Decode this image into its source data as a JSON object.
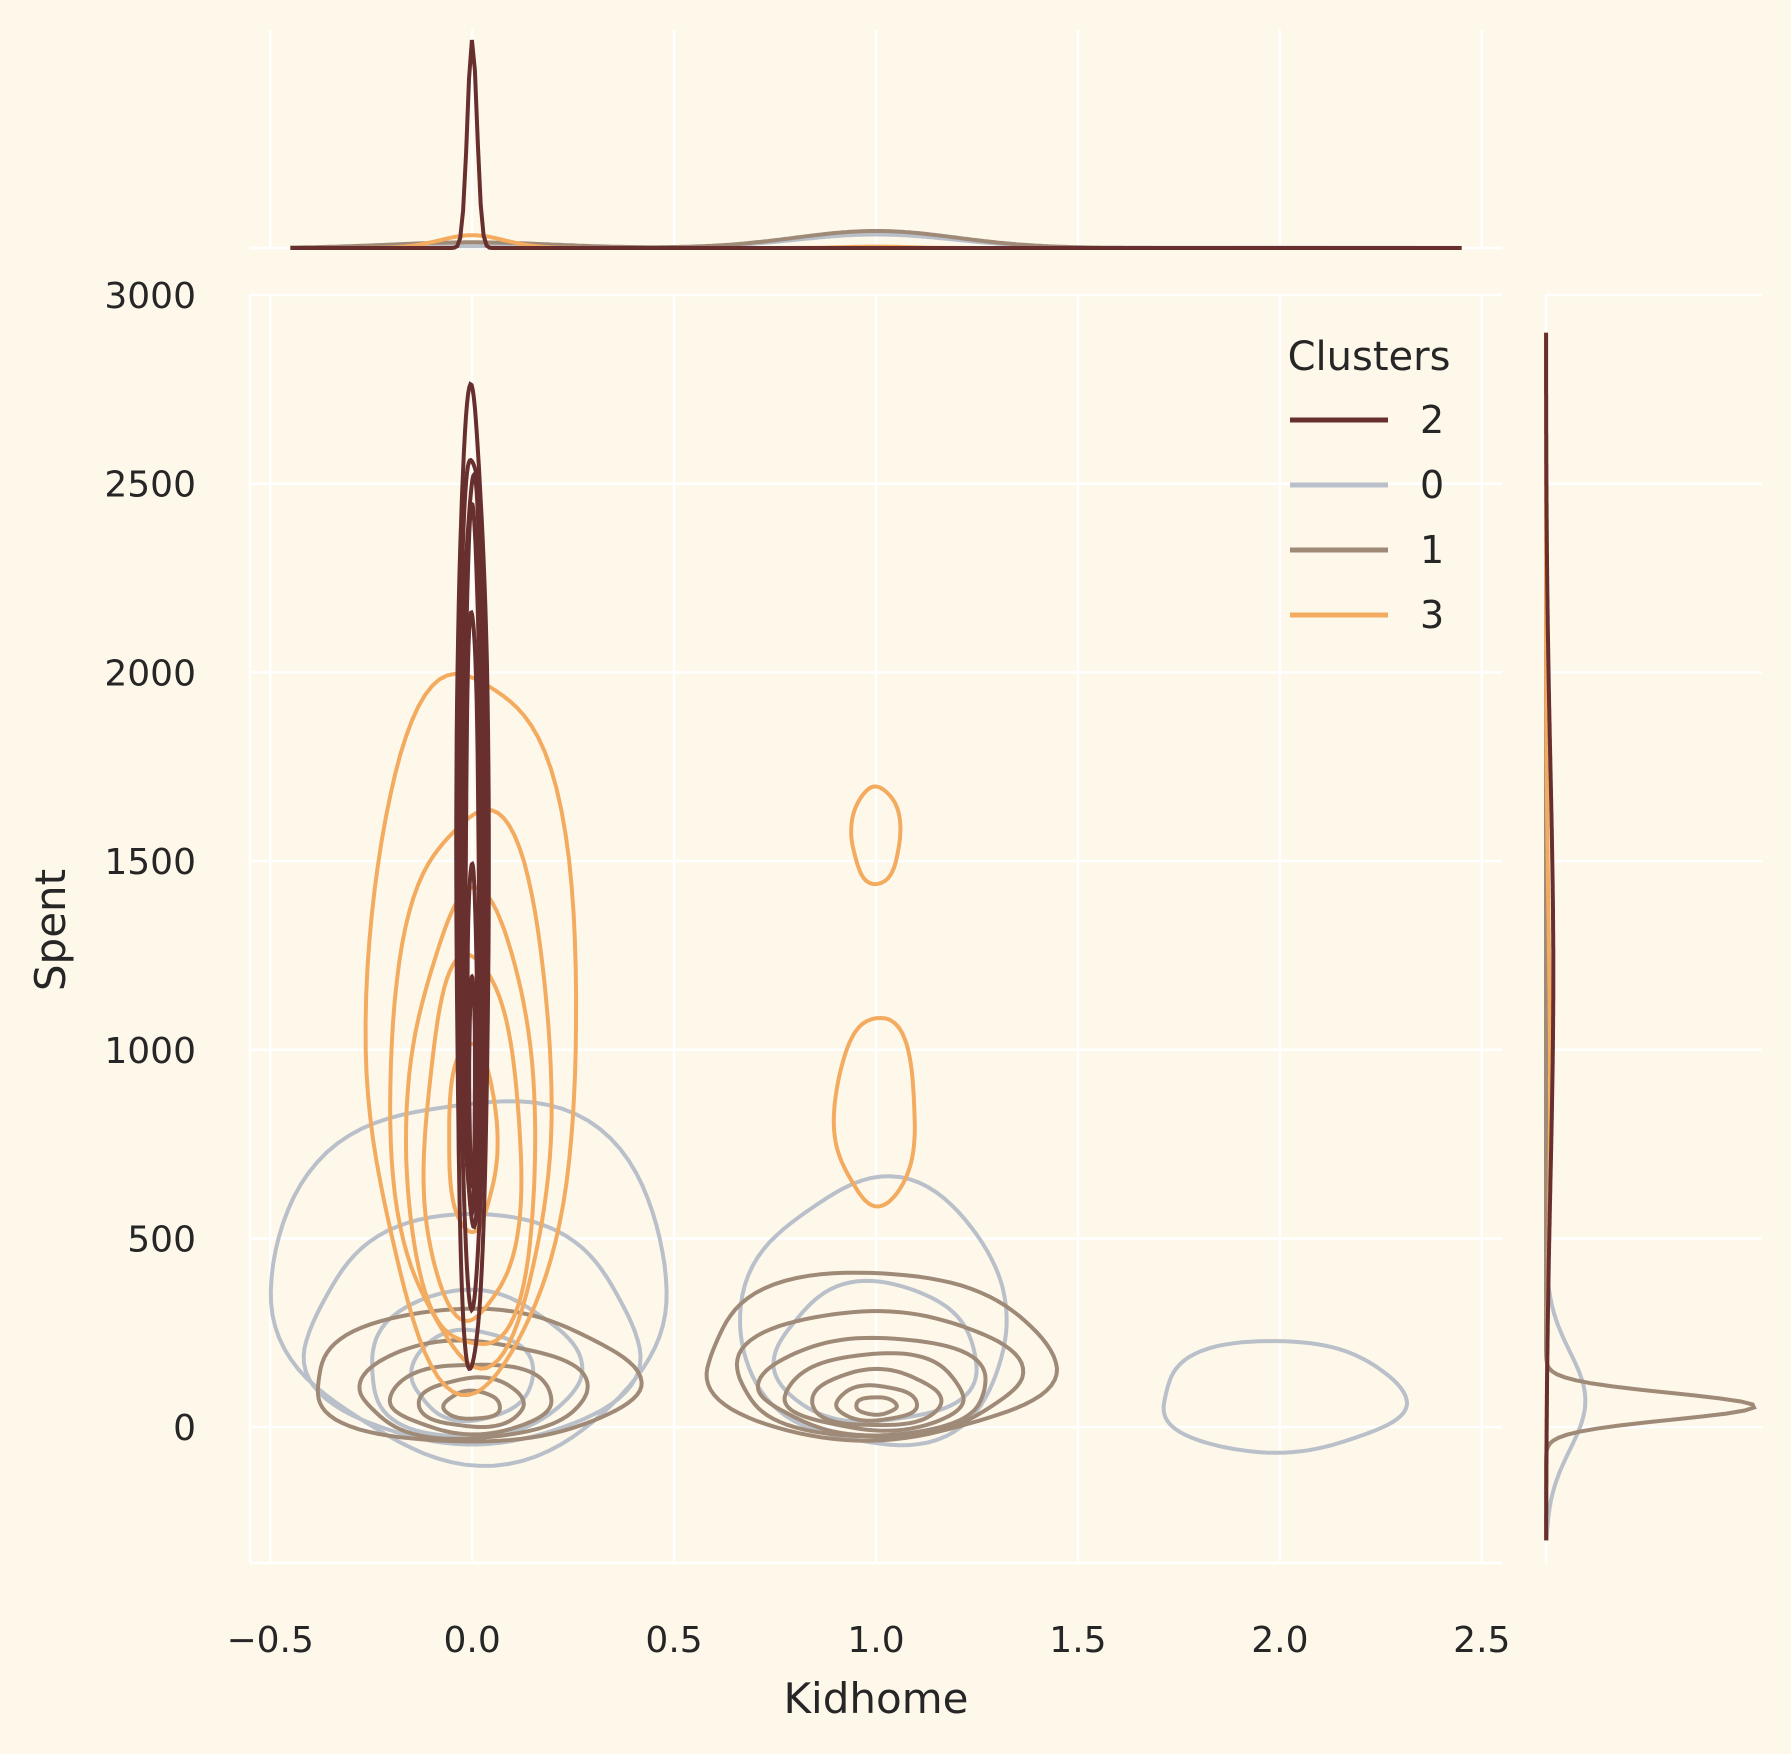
{
  "chart_data": {
    "type": "kde-contour",
    "xlabel": "Kidhome",
    "ylabel": "Spent",
    "xlim": [
      -0.55,
      2.55
    ],
    "ylim": [
      -360,
      3000
    ],
    "xticks": [
      -0.5,
      0.0,
      0.5,
      1.0,
      1.5,
      2.0,
      2.5
    ],
    "xtick_labels": [
      "−0.5",
      "0.0",
      "0.5",
      "1.0",
      "1.5",
      "2.0",
      "2.5"
    ],
    "yticks": [
      0,
      500,
      1000,
      1500,
      2000,
      2500,
      3000
    ],
    "ytick_labels": [
      "0",
      "500",
      "1000",
      "1500",
      "2000",
      "2500",
      "3000"
    ],
    "grid": true,
    "background": "#FEF8EB",
    "legend": {
      "title": "Clusters",
      "placement": "top-right",
      "entries": [
        {
          "label": "2",
          "color": "#682F2F"
        },
        {
          "label": "0",
          "color": "#B9C0C9"
        },
        {
          "label": "1",
          "color": "#9F8A78"
        },
        {
          "label": "3",
          "color": "#F3AB60"
        }
      ]
    },
    "series": [
      {
        "cluster": "2",
        "color": "#682F2F",
        "contours": [
          {
            "cx": 0.0,
            "cy": 1350,
            "rx": 0.04,
            "ry": 1400
          },
          {
            "cx": 0.0,
            "cy": 1400,
            "rx": 0.034,
            "ry": 1220
          },
          {
            "cx": 0.0,
            "cy": 1450,
            "rx": 0.028,
            "ry": 1060
          },
          {
            "cx": 0.0,
            "cy": 1450,
            "rx": 0.022,
            "ry": 950
          },
          {
            "cx": 0.0,
            "cy": 1300,
            "rx": 0.017,
            "ry": 850
          },
          {
            "cx": 0.0,
            "cy": 1000,
            "rx": 0.012,
            "ry": 500
          },
          {
            "cx": 0.0,
            "cy": 900,
            "rx": 0.007,
            "ry": 300
          }
        ],
        "x_marginal": [
          {
            "mean": 0.0,
            "sd": 0.012,
            "weight": 1.0
          }
        ],
        "y_marginal": [
          {
            "mean": 1200,
            "sd": 550,
            "weight": 1.0
          }
        ]
      },
      {
        "cluster": "0",
        "color": "#B9C0C9",
        "contours": [
          {
            "cx": 0.0,
            "cy": 230,
            "rx": 0.41,
            "ry": 330
          },
          {
            "cx": 0.0,
            "cy": 150,
            "rx": 0.26,
            "ry": 210
          },
          {
            "cx": 0.0,
            "cy": 130,
            "rx": 0.15,
            "ry": 130
          },
          {
            "cx": 0.0,
            "cy": 360,
            "rx": 0.49,
            "ry": 520
          },
          {
            "cx": 1.0,
            "cy": 270,
            "rx": 0.33,
            "ry": 380
          },
          {
            "cx": 1.0,
            "cy": 180,
            "rx": 0.25,
            "ry": 200
          },
          {
            "cx": 2.0,
            "cy": 70,
            "rx": 0.3,
            "ry": 160
          }
        ],
        "x_marginal": [
          {
            "mean": 1.0,
            "sd": 0.2,
            "weight": 0.85
          },
          {
            "mean": 0.0,
            "sd": 0.2,
            "weight": 0.12
          },
          {
            "mean": 2.0,
            "sd": 0.25,
            "weight": 0.03
          }
        ],
        "y_marginal": [
          {
            "mean": 70,
            "sd": 130,
            "weight": 1.0
          }
        ]
      },
      {
        "cluster": "1",
        "color": "#9F8A78",
        "contours": [
          {
            "cx": 0.0,
            "cy": 120,
            "rx": 0.4,
            "ry": 190
          },
          {
            "cx": 0.0,
            "cy": 90,
            "rx": 0.28,
            "ry": 140
          },
          {
            "cx": 0.0,
            "cy": 70,
            "rx": 0.2,
            "ry": 100
          },
          {
            "cx": 0.0,
            "cy": 60,
            "rx": 0.13,
            "ry": 70
          },
          {
            "cx": 0.0,
            "cy": 55,
            "rx": 0.07,
            "ry": 40
          },
          {
            "cx": 1.0,
            "cy": 170,
            "rx": 0.43,
            "ry": 240
          },
          {
            "cx": 1.0,
            "cy": 130,
            "rx": 0.35,
            "ry": 180
          },
          {
            "cx": 1.0,
            "cy": 100,
            "rx": 0.28,
            "ry": 140
          },
          {
            "cx": 1.0,
            "cy": 85,
            "rx": 0.22,
            "ry": 110
          },
          {
            "cx": 1.0,
            "cy": 70,
            "rx": 0.16,
            "ry": 80
          },
          {
            "cx": 1.0,
            "cy": 60,
            "rx": 0.1,
            "ry": 50
          },
          {
            "cx": 1.0,
            "cy": 55,
            "rx": 0.05,
            "ry": 25
          }
        ],
        "x_marginal": [
          {
            "mean": 1.0,
            "sd": 0.2,
            "weight": 0.75
          },
          {
            "mean": 0.0,
            "sd": 0.2,
            "weight": 0.25
          }
        ],
        "y_marginal": [
          {
            "mean": 55,
            "sd": 35,
            "weight": 1.0
          }
        ]
      },
      {
        "cluster": "3",
        "color": "#F3AB60",
        "contours": [
          {
            "cx": 0.0,
            "cy": 1000,
            "rx": 0.26,
            "ry": 1030
          },
          {
            "cx": 0.0,
            "cy": 850,
            "rx": 0.2,
            "ry": 790
          },
          {
            "cx": 0.0,
            "cy": 750,
            "rx": 0.16,
            "ry": 650
          },
          {
            "cx": 0.0,
            "cy": 720,
            "rx": 0.12,
            "ry": 520
          },
          {
            "cx": 0.0,
            "cy": 750,
            "rx": 0.06,
            "ry": 270
          },
          {
            "cx": 1.0,
            "cy": 1560,
            "rx": 0.06,
            "ry": 140
          },
          {
            "cx": 1.0,
            "cy": 820,
            "rx": 0.1,
            "ry": 270
          }
        ],
        "x_marginal": [
          {
            "mean": 0.0,
            "sd": 0.08,
            "weight": 0.9
          },
          {
            "mean": 1.0,
            "sd": 0.08,
            "weight": 0.1
          }
        ],
        "y_marginal": [
          {
            "mean": 900,
            "sd": 450,
            "weight": 1.0
          }
        ]
      }
    ]
  }
}
